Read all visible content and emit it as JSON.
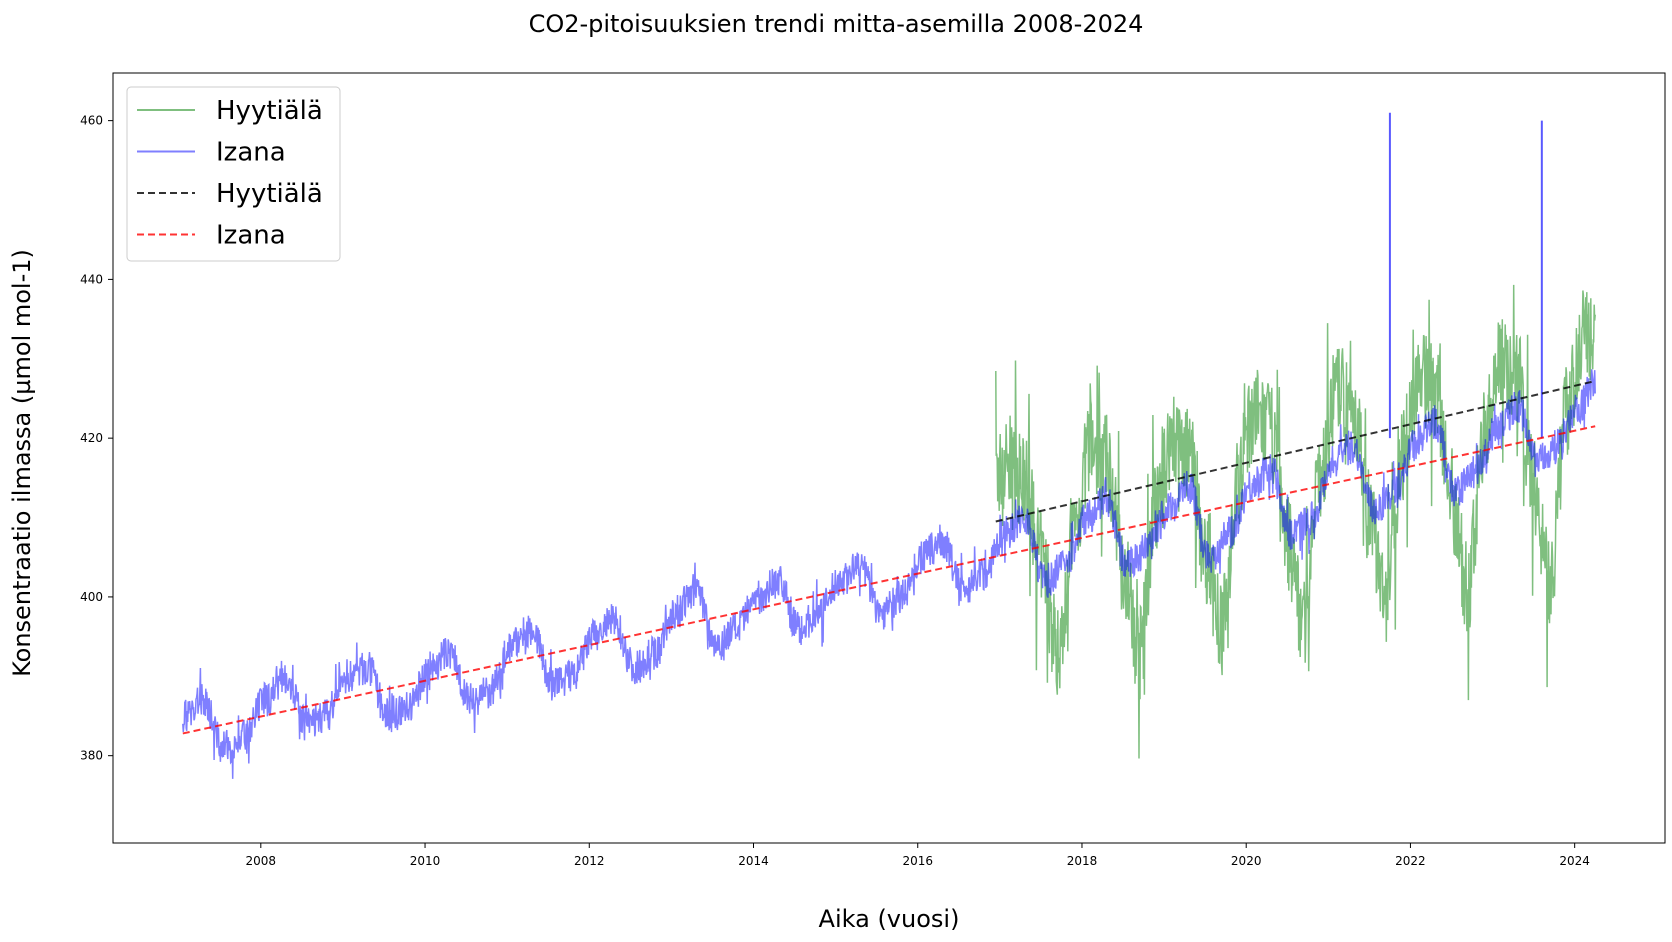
{
  "chart_data": {
    "type": "line",
    "title": "CO2-pitoisuuksien trendi mitta-asemilla 2008-2024",
    "xlabel": "Aika (vuosi)",
    "ylabel": "Konsentraatio ilmassa (µmol mol-1)",
    "xlim": [
      2006.2,
      2025.1
    ],
    "ylim": [
      369,
      466
    ],
    "x_ticks": [
      2008,
      2010,
      2012,
      2014,
      2016,
      2018,
      2020,
      2022,
      2024
    ],
    "x_tick_labels": [
      "2008",
      "2010",
      "2012",
      "2014",
      "2016",
      "2018",
      "2020",
      "2022",
      "2024"
    ],
    "y_ticks": [
      380,
      400,
      420,
      440,
      460
    ],
    "y_tick_labels": [
      "380",
      "400",
      "420",
      "440",
      "460"
    ],
    "grid": false,
    "legend_position": "top-left",
    "legend": [
      {
        "label": "Hyytiälä",
        "color": "#008000",
        "style": "solid"
      },
      {
        "label": "Izana",
        "color": "#0000ff",
        "style": "solid"
      },
      {
        "label": "Hyytiälä",
        "color": "#000000",
        "style": "dashed"
      },
      {
        "label": "Izana",
        "color": "#ff0000",
        "style": "dashed"
      }
    ],
    "series": [
      {
        "name": "Hyytiälä",
        "kind": "measurements",
        "color": "#008000",
        "x": [
          2016.95,
          2017.1,
          2017.3,
          2017.5,
          2017.7,
          2017.9,
          2018.1,
          2018.3,
          2018.5,
          2018.7,
          2018.9,
          2019.1,
          2019.3,
          2019.5,
          2019.7,
          2019.9,
          2020.1,
          2020.3,
          2020.5,
          2020.7,
          2020.9,
          2021.1,
          2021.3,
          2021.5,
          2021.7,
          2021.9,
          2022.1,
          2022.3,
          2022.5,
          2022.7,
          2022.9,
          2023.1,
          2023.3,
          2023.5,
          2023.7,
          2023.9,
          2024.1,
          2024.25
        ],
        "y": [
          415,
          417,
          414,
          405,
          393,
          408,
          419,
          417,
          404,
          393,
          411,
          420,
          418,
          405,
          396,
          414,
          423,
          421,
          407,
          397,
          415,
          426,
          424,
          410,
          399,
          418,
          428,
          426,
          412,
          401,
          421,
          430,
          428,
          414,
          402,
          423,
          433,
          432
        ]
      },
      {
        "name": "Izana",
        "kind": "measurements",
        "color": "#0000ff",
        "x": [
          2007.05,
          2007.3,
          2007.55,
          2007.8,
          2008.05,
          2008.3,
          2008.55,
          2008.8,
          2009.05,
          2009.3,
          2009.55,
          2009.8,
          2010.05,
          2010.3,
          2010.55,
          2010.8,
          2011.05,
          2011.3,
          2011.55,
          2011.8,
          2012.05,
          2012.3,
          2012.55,
          2012.8,
          2013.05,
          2013.3,
          2013.55,
          2013.8,
          2014.05,
          2014.3,
          2014.55,
          2014.8,
          2015.05,
          2015.3,
          2015.55,
          2015.8,
          2016.05,
          2016.3,
          2016.55,
          2016.8,
          2017.05,
          2017.3,
          2017.55,
          2017.8,
          2018.05,
          2018.3,
          2018.55,
          2018.8,
          2019.05,
          2019.3,
          2019.55,
          2019.8,
          2020.05,
          2020.3,
          2020.55,
          2020.8,
          2021.05,
          2021.3,
          2021.55,
          2021.8,
          2022.05,
          2022.3,
          2022.55,
          2022.8,
          2023.05,
          2023.3,
          2023.55,
          2023.8,
          2024.05,
          2024.25
        ],
        "y": [
          385,
          387,
          381,
          382,
          387,
          390,
          384,
          385,
          390,
          391,
          385,
          386,
          391,
          393,
          387,
          388,
          394,
          396,
          389,
          390,
          395,
          397,
          391,
          393,
          398,
          401,
          394,
          396,
          400,
          402,
          396,
          398,
          402,
          404,
          398,
          400,
          405,
          407,
          401,
          403,
          408,
          410,
          402,
          404,
          410,
          412,
          404,
          406,
          411,
          414,
          405,
          408,
          414,
          416,
          408,
          410,
          417,
          419,
          411,
          413,
          419,
          422,
          413,
          416,
          421,
          424,
          417,
          419,
          424,
          427
        ],
        "spikes": [
          {
            "x": 2021.75,
            "y": 461
          },
          {
            "x": 2023.6,
            "y": 460
          }
        ]
      },
      {
        "name": "Hyytiälä",
        "kind": "trend",
        "color": "#000000",
        "style": "dashed",
        "x": [
          2016.95,
          2024.25
        ],
        "y": [
          409.5,
          427.2
        ]
      },
      {
        "name": "Izana",
        "kind": "trend",
        "color": "#ff0000",
        "style": "dashed",
        "x": [
          2007.05,
          2024.25
        ],
        "y": [
          382.8,
          421.5
        ]
      }
    ]
  }
}
